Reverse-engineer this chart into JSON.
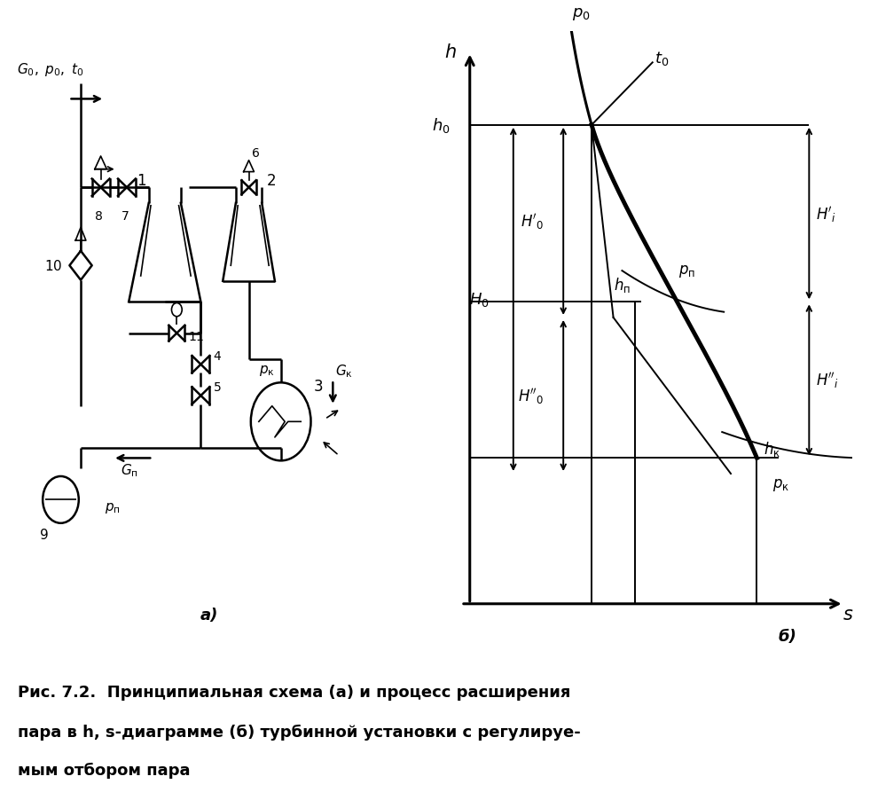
{
  "bg_color": "#ffffff",
  "label_a": "а)",
  "label_b": "б)",
  "caption_line1": "Рис. 7.2.  Принципиальная схема (а) и процесс расширения",
  "caption_line2": "пара в h, s-диаграмме (б) турбинной установки с регулируе-",
  "caption_line3": "мым отбором пара"
}
